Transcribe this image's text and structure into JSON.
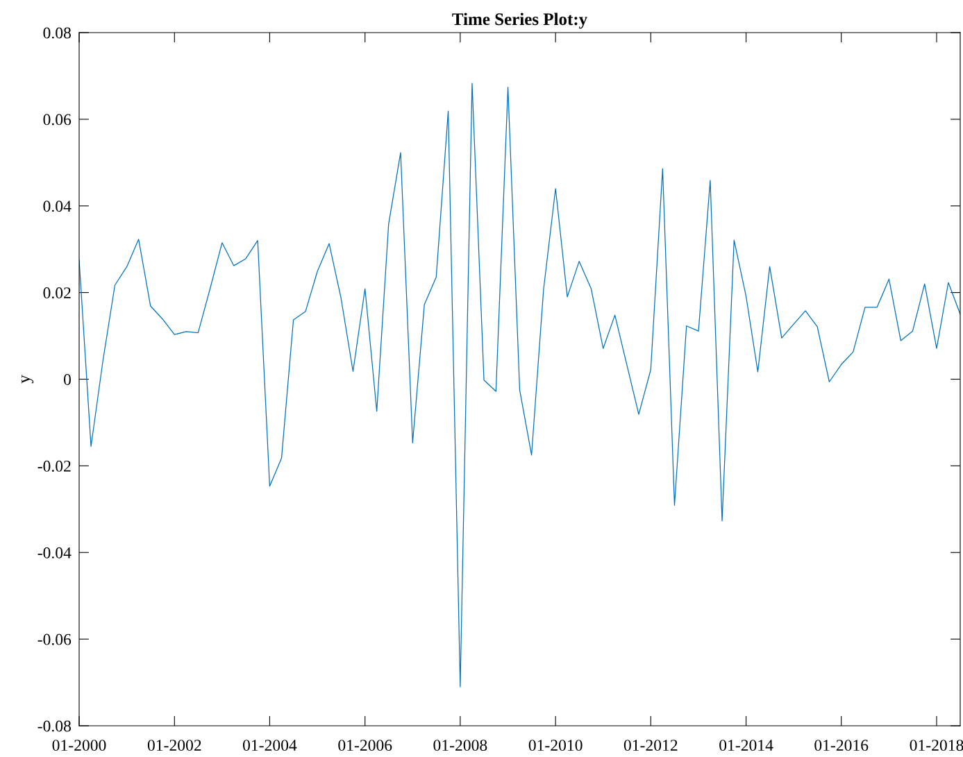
{
  "chart_data": {
    "type": "line",
    "title": "Time Series Plot:y",
    "ylabel": "y",
    "x": [
      "2000-01",
      "2000-04",
      "2000-07",
      "2000-10",
      "2001-01",
      "2001-04",
      "2001-07",
      "2001-10",
      "2002-01",
      "2002-04",
      "2002-07",
      "2002-10",
      "2003-01",
      "2003-04",
      "2003-07",
      "2003-10",
      "2004-01",
      "2004-04",
      "2004-07",
      "2004-10",
      "2005-01",
      "2005-04",
      "2005-07",
      "2005-10",
      "2006-01",
      "2006-04",
      "2006-07",
      "2006-10",
      "2007-01",
      "2007-04",
      "2007-07",
      "2007-10",
      "2008-01",
      "2008-04",
      "2008-07",
      "2008-10",
      "2009-01",
      "2009-04",
      "2009-07",
      "2009-10",
      "2010-01",
      "2010-04",
      "2010-07",
      "2010-10",
      "2011-01",
      "2011-04",
      "2011-07",
      "2011-10",
      "2012-01",
      "2012-04",
      "2012-07",
      "2012-10",
      "2013-01",
      "2013-04",
      "2013-07",
      "2013-10",
      "2014-01",
      "2014-04",
      "2014-07",
      "2014-10",
      "2015-01",
      "2015-04",
      "2015-07",
      "2015-10",
      "2016-01",
      "2016-04",
      "2016-07",
      "2016-10",
      "2017-01",
      "2017-04",
      "2017-07",
      "2017-10",
      "2018-01",
      "2018-04",
      "2018-07"
    ],
    "series": [
      {
        "color": "#0072bd",
        "values": [
          0.0275,
          -0.0155,
          0.0042,
          0.0217,
          0.026,
          0.0323,
          0.0169,
          0.0139,
          0.0103,
          0.011,
          0.0107,
          0.0209,
          0.0315,
          0.0262,
          0.0278,
          0.032,
          -0.0247,
          -0.0182,
          0.0137,
          0.0156,
          0.0249,
          0.0313,
          0.0187,
          0.0018,
          0.0209,
          -0.0074,
          0.0358,
          0.0523,
          -0.0147,
          0.0172,
          0.0236,
          0.0619,
          -0.071,
          0.0683,
          -0.0002,
          -0.0028,
          0.0674,
          -0.0025,
          -0.0175,
          0.0207,
          0.044,
          0.019,
          0.0272,
          0.0209,
          0.0071,
          0.0148,
          0.0034,
          -0.0081,
          0.0022,
          0.0486,
          -0.0291,
          0.0123,
          0.0111,
          0.0459,
          -0.0327,
          0.0321,
          0.0191,
          0.0017,
          0.026,
          0.0095,
          0.0127,
          0.0158,
          0.0121,
          -0.0006,
          0.0034,
          0.0063,
          0.0166,
          0.0166,
          0.0231,
          0.0089,
          0.0111,
          0.022,
          0.0071,
          0.0223,
          0.015
        ]
      }
    ],
    "xlim": [
      "2000-01",
      "2018-07"
    ],
    "xticks": [
      {
        "value": "2000-01",
        "label": "01-2000"
      },
      {
        "value": "2002-01",
        "label": "01-2002"
      },
      {
        "value": "2004-01",
        "label": "01-2004"
      },
      {
        "value": "2006-01",
        "label": "01-2006"
      },
      {
        "value": "2008-01",
        "label": "01-2008"
      },
      {
        "value": "2010-01",
        "label": "01-2010"
      },
      {
        "value": "2012-01",
        "label": "01-2012"
      },
      {
        "value": "2014-01",
        "label": "01-2014"
      },
      {
        "value": "2016-01",
        "label": "01-2016"
      },
      {
        "value": "2018-01",
        "label": "01-2018"
      }
    ],
    "ylim": [
      -0.08,
      0.08
    ],
    "yticks": [
      {
        "value": -0.08,
        "label": "-0.08"
      },
      {
        "value": -0.06,
        "label": "-0.06"
      },
      {
        "value": -0.04,
        "label": "-0.04"
      },
      {
        "value": -0.02,
        "label": "-0.02"
      },
      0,
      0.02,
      0.04,
      0.06,
      0.08
    ],
    "grid": false,
    "marker": "none",
    "line_style": "solid"
  }
}
